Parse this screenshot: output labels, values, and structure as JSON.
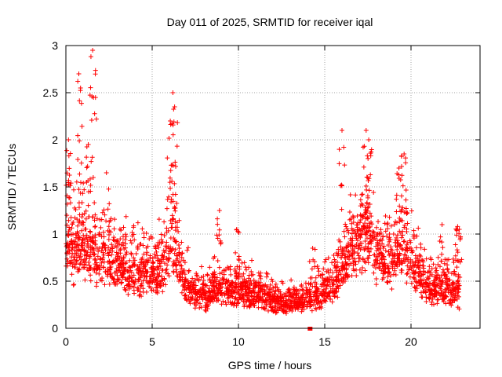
{
  "chart_data": {
    "type": "scatter",
    "title": "Day 011 of 2025, SRMTID for receiver iqal",
    "xlabel": "GPS time / hours",
    "ylabel": "SRMTID / TECUs",
    "xlim": [
      0,
      24
    ],
    "ylim": [
      0,
      3
    ],
    "x_ticks": [
      0,
      5,
      10,
      15,
      20
    ],
    "y_ticks": [
      0,
      0.5,
      1,
      1.5,
      2,
      2.5,
      3
    ],
    "x_tick_labels": [
      "0",
      "5",
      "10",
      "15",
      "20"
    ],
    "y_tick_labels": [
      "0",
      "0.5",
      "1",
      "1.5",
      "2",
      "2.5",
      "3"
    ],
    "grid": true,
    "marker": "+",
    "series": [
      {
        "name": "SRMTID",
        "color": "#ff0000",
        "envelope_note": "Dense scatter of several thousand samples; represented here by per-period median and upper-envelope values (hours, TECU).",
        "median_profile": [
          [
            0.0,
            0.95
          ],
          [
            0.5,
            0.85
          ],
          [
            1.0,
            0.85
          ],
          [
            1.5,
            0.8
          ],
          [
            2.0,
            0.8
          ],
          [
            2.5,
            0.75
          ],
          [
            3.0,
            0.7
          ],
          [
            3.5,
            0.65
          ],
          [
            4.0,
            0.6
          ],
          [
            4.5,
            0.6
          ],
          [
            5.0,
            0.62
          ],
          [
            5.5,
            0.65
          ],
          [
            6.0,
            0.8
          ],
          [
            6.3,
            1.0
          ],
          [
            6.7,
            0.55
          ],
          [
            7.0,
            0.45
          ],
          [
            7.5,
            0.4
          ],
          [
            8.0,
            0.35
          ],
          [
            8.5,
            0.4
          ],
          [
            9.0,
            0.45
          ],
          [
            9.5,
            0.42
          ],
          [
            10.0,
            0.42
          ],
          [
            10.5,
            0.4
          ],
          [
            11.0,
            0.38
          ],
          [
            11.5,
            0.35
          ],
          [
            12.0,
            0.3
          ],
          [
            12.5,
            0.28
          ],
          [
            13.0,
            0.28
          ],
          [
            13.5,
            0.3
          ],
          [
            14.0,
            0.32
          ],
          [
            14.5,
            0.35
          ],
          [
            15.0,
            0.4
          ],
          [
            15.5,
            0.5
          ],
          [
            16.0,
            0.65
          ],
          [
            16.5,
            0.85
          ],
          [
            17.0,
            0.9
          ],
          [
            17.5,
            1.1
          ],
          [
            18.0,
            0.85
          ],
          [
            18.5,
            0.7
          ],
          [
            19.0,
            0.75
          ],
          [
            19.5,
            0.95
          ],
          [
            20.0,
            0.8
          ],
          [
            20.5,
            0.55
          ],
          [
            21.0,
            0.45
          ],
          [
            21.5,
            0.42
          ],
          [
            22.0,
            0.45
          ],
          [
            22.5,
            0.4
          ],
          [
            22.8,
            0.35
          ]
        ],
        "peaks": [
          [
            0.15,
            2.0
          ],
          [
            0.75,
            2.7
          ],
          [
            0.85,
            2.55
          ],
          [
            1.55,
            2.95
          ],
          [
            1.6,
            2.45
          ],
          [
            1.3,
            1.95
          ],
          [
            2.35,
            1.65
          ],
          [
            6.05,
            2.2
          ],
          [
            6.2,
            2.5
          ],
          [
            6.3,
            2.35
          ],
          [
            8.9,
            1.25
          ],
          [
            9.9,
            1.05
          ],
          [
            14.3,
            0.85
          ],
          [
            16.0,
            2.1
          ],
          [
            17.4,
            2.1
          ],
          [
            17.55,
            2.0
          ],
          [
            19.6,
            1.85
          ],
          [
            19.3,
            1.7
          ],
          [
            21.8,
            1.1
          ],
          [
            22.7,
            1.08
          ],
          [
            22.8,
            1.05
          ]
        ]
      }
    ],
    "annotations": [
      {
        "x": 14.15,
        "y": 0.0,
        "label": "",
        "marker": "filled-square"
      }
    ]
  }
}
